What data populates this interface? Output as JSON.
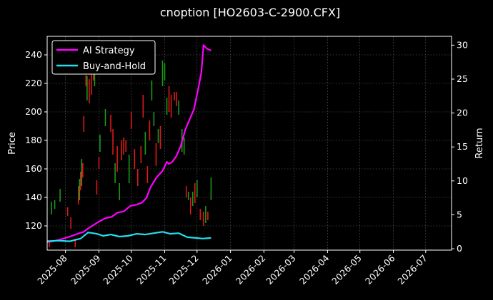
{
  "chart_data": {
    "type": "line",
    "title": "cnoption [HO2603-C-2900.CFX]",
    "ylabel": "Price",
    "y2label": "Return",
    "ylim": [
      103,
      253
    ],
    "y2lim": [
      -0.2,
      31.3
    ],
    "xlim": [
      "2025-07-15",
      "2026-07-25"
    ],
    "yticks": [
      "120",
      "140",
      "160",
      "180",
      "200",
      "220",
      "240"
    ],
    "y2ticks": [
      "0",
      "5",
      "10",
      "15",
      "20",
      "25",
      "30"
    ],
    "xticks": [
      {
        "date": "2025-08-01",
        "label": "2025-08"
      },
      {
        "date": "2025-09-01",
        "label": "2025-09"
      },
      {
        "date": "2025-10-01",
        "label": "2025-10"
      },
      {
        "date": "2025-11-01",
        "label": "2025-11"
      },
      {
        "date": "2025-12-01",
        "label": "2025-12"
      },
      {
        "date": "2026-01-01",
        "label": "2026-01"
      },
      {
        "date": "2026-02-01",
        "label": "2026-02"
      },
      {
        "date": "2026-03-01",
        "label": "2026-03"
      },
      {
        "date": "2026-04-01",
        "label": "2026-04"
      },
      {
        "date": "2026-05-01",
        "label": "2026-05"
      },
      {
        "date": "2026-06-01",
        "label": "2026-06"
      },
      {
        "date": "2026-07-01",
        "label": "2026-07"
      }
    ],
    "grid": true,
    "legend_position": "top-left",
    "series": [
      {
        "name": "AI Strategy",
        "color": "#ff00ff",
        "axis": "right",
        "x": [
          "2025-07-15",
          "2025-07-20",
          "2025-07-26",
          "2025-08-01",
          "2025-08-07",
          "2025-08-12",
          "2025-08-18",
          "2025-08-22",
          "2025-08-28",
          "2025-09-01",
          "2025-09-07",
          "2025-09-13",
          "2025-09-18",
          "2025-09-24",
          "2025-09-30",
          "2025-10-06",
          "2025-10-11",
          "2025-10-15",
          "2025-10-19",
          "2025-10-24",
          "2025-10-30",
          "2025-11-03",
          "2025-11-05",
          "2025-11-08",
          "2025-11-12",
          "2025-11-16",
          "2025-11-20",
          "2025-11-24",
          "2025-11-28",
          "2025-12-02",
          "2025-12-05",
          "2025-12-07",
          "2025-12-10",
          "2025-12-14"
        ],
        "values": [
          1.0,
          1.1,
          1.3,
          1.6,
          1.9,
          2.2,
          2.5,
          3.0,
          3.6,
          4.0,
          4.5,
          4.7,
          5.3,
          5.5,
          6.3,
          6.5,
          6.8,
          7.5,
          9.1,
          10.4,
          11.5,
          12.8,
          12.5,
          12.8,
          13.7,
          15.2,
          17.5,
          19.0,
          20.5,
          23.5,
          26.0,
          30.0,
          29.5,
          29.2
        ]
      },
      {
        "name": "Buy-and-Hold",
        "color": "#22e0f0",
        "axis": "right",
        "x": [
          "2025-07-15",
          "2025-07-25",
          "2025-08-05",
          "2025-08-15",
          "2025-08-22",
          "2025-08-30",
          "2025-09-05",
          "2025-09-12",
          "2025-09-20",
          "2025-09-28",
          "2025-10-06",
          "2025-10-14",
          "2025-10-22",
          "2025-10-30",
          "2025-11-06",
          "2025-11-14",
          "2025-11-22",
          "2025-11-30",
          "2025-12-06",
          "2025-12-14"
        ],
        "values": [
          1.1,
          1.2,
          1.1,
          1.5,
          2.4,
          2.2,
          1.9,
          2.1,
          1.8,
          1.9,
          2.2,
          2.1,
          2.3,
          2.5,
          2.2,
          2.3,
          1.7,
          1.6,
          1.5,
          1.6
        ]
      }
    ],
    "candles": [
      {
        "date": "2025-07-17",
        "low": 105,
        "high": 110,
        "color": "red"
      },
      {
        "date": "2025-07-19",
        "low": 128,
        "high": 137,
        "color": "green"
      },
      {
        "date": "2025-07-22",
        "low": 132,
        "high": 138,
        "color": "green"
      },
      {
        "date": "2025-07-27",
        "low": 137,
        "high": 146,
        "color": "green"
      },
      {
        "date": "2025-08-03",
        "low": 127,
        "high": 133,
        "color": "red"
      },
      {
        "date": "2025-08-06",
        "low": 118,
        "high": 126,
        "color": "red"
      },
      {
        "date": "2025-08-10",
        "low": 105,
        "high": 111,
        "color": "red"
      },
      {
        "date": "2025-08-13",
        "low": 135,
        "high": 148,
        "color": "red"
      },
      {
        "date": "2025-08-14",
        "low": 138,
        "high": 153,
        "color": "green"
      },
      {
        "date": "2025-08-15",
        "low": 145,
        "high": 158,
        "color": "red"
      },
      {
        "date": "2025-08-16",
        "low": 148,
        "high": 167,
        "color": "green"
      },
      {
        "date": "2025-08-17",
        "low": 154,
        "high": 164,
        "color": "red"
      },
      {
        "date": "2025-08-18",
        "low": 186,
        "high": 197,
        "color": "red"
      },
      {
        "date": "2025-08-20",
        "low": 218,
        "high": 226,
        "color": "red"
      },
      {
        "date": "2025-08-21",
        "low": 208,
        "high": 225,
        "color": "green"
      },
      {
        "date": "2025-08-23",
        "low": 206,
        "high": 223,
        "color": "red"
      },
      {
        "date": "2025-08-25",
        "low": 212,
        "high": 227,
        "color": "red"
      },
      {
        "date": "2025-08-27",
        "low": 222,
        "high": 236,
        "color": "red"
      },
      {
        "date": "2025-08-28",
        "low": 218,
        "high": 232,
        "color": "green"
      },
      {
        "date": "2025-08-30",
        "low": 142,
        "high": 152,
        "color": "red"
      },
      {
        "date": "2025-09-01",
        "low": 160,
        "high": 168,
        "color": "red"
      },
      {
        "date": "2025-09-02",
        "low": 172,
        "high": 184,
        "color": "green"
      },
      {
        "date": "2025-09-07",
        "low": 190,
        "high": 202,
        "color": "green"
      },
      {
        "date": "2025-09-12",
        "low": 186,
        "high": 198,
        "color": "red"
      },
      {
        "date": "2025-09-14",
        "low": 170,
        "high": 188,
        "color": "red"
      },
      {
        "date": "2025-09-16",
        "low": 150,
        "high": 164,
        "color": "green"
      },
      {
        "date": "2025-09-18",
        "low": 158,
        "high": 176,
        "color": "red"
      },
      {
        "date": "2025-09-20",
        "low": 138,
        "high": 150,
        "color": "green"
      },
      {
        "date": "2025-09-22",
        "low": 166,
        "high": 180,
        "color": "red"
      },
      {
        "date": "2025-09-24",
        "low": 170,
        "high": 182,
        "color": "red"
      },
      {
        "date": "2025-09-26",
        "low": 172,
        "high": 180,
        "color": "red"
      },
      {
        "date": "2025-09-29",
        "low": 150,
        "high": 170,
        "color": "green"
      },
      {
        "date": "2025-10-01",
        "low": 188,
        "high": 200,
        "color": "red"
      },
      {
        "date": "2025-10-04",
        "low": 160,
        "high": 174,
        "color": "red"
      },
      {
        "date": "2025-10-07",
        "low": 148,
        "high": 160,
        "color": "red"
      },
      {
        "date": "2025-10-10",
        "low": 164,
        "high": 176,
        "color": "red"
      },
      {
        "date": "2025-10-12",
        "low": 196,
        "high": 212,
        "color": "red"
      },
      {
        "date": "2025-10-14",
        "low": 170,
        "high": 186,
        "color": "green"
      },
      {
        "date": "2025-10-16",
        "low": 150,
        "high": 162,
        "color": "red"
      },
      {
        "date": "2025-10-18",
        "low": 180,
        "high": 194,
        "color": "red"
      },
      {
        "date": "2025-10-20",
        "low": 208,
        "high": 222,
        "color": "green"
      },
      {
        "date": "2025-10-22",
        "low": 190,
        "high": 200,
        "color": "green"
      },
      {
        "date": "2025-10-24",
        "low": 162,
        "high": 178,
        "color": "red"
      },
      {
        "date": "2025-10-26",
        "low": 178,
        "high": 188,
        "color": "green"
      },
      {
        "date": "2025-10-28",
        "low": 174,
        "high": 190,
        "color": "red"
      },
      {
        "date": "2025-10-30",
        "low": 218,
        "high": 236,
        "color": "green"
      },
      {
        "date": "2025-11-01",
        "low": 222,
        "high": 234,
        "color": "green"
      },
      {
        "date": "2025-11-03",
        "low": 198,
        "high": 210,
        "color": "green"
      },
      {
        "date": "2025-11-05",
        "low": 200,
        "high": 218,
        "color": "red"
      },
      {
        "date": "2025-11-07",
        "low": 196,
        "high": 212,
        "color": "red"
      },
      {
        "date": "2025-11-10",
        "low": 208,
        "high": 214,
        "color": "red"
      },
      {
        "date": "2025-11-12",
        "low": 204,
        "high": 214,
        "color": "red"
      },
      {
        "date": "2025-11-14",
        "low": 198,
        "high": 208,
        "color": "green"
      },
      {
        "date": "2025-11-17",
        "low": 172,
        "high": 188,
        "color": "green"
      },
      {
        "date": "2025-11-19",
        "low": 170,
        "high": 182,
        "color": "green"
      },
      {
        "date": "2025-11-21",
        "low": 140,
        "high": 148,
        "color": "red"
      },
      {
        "date": "2025-11-23",
        "low": 138,
        "high": 144,
        "color": "green"
      },
      {
        "date": "2025-11-25",
        "low": 128,
        "high": 140,
        "color": "red"
      },
      {
        "date": "2025-11-27",
        "low": 134,
        "high": 144,
        "color": "green"
      },
      {
        "date": "2025-11-29",
        "low": 136,
        "high": 150,
        "color": "red"
      },
      {
        "date": "2025-12-01",
        "low": 140,
        "high": 152,
        "color": "green"
      },
      {
        "date": "2025-12-04",
        "low": 124,
        "high": 132,
        "color": "red"
      },
      {
        "date": "2025-12-07",
        "low": 120,
        "high": 130,
        "color": "red"
      },
      {
        "date": "2025-12-09",
        "low": 122,
        "high": 134,
        "color": "green"
      },
      {
        "date": "2025-12-11",
        "low": 124,
        "high": 130,
        "color": "red"
      },
      {
        "date": "2025-12-14",
        "low": 138,
        "high": 154,
        "color": "green"
      }
    ]
  }
}
